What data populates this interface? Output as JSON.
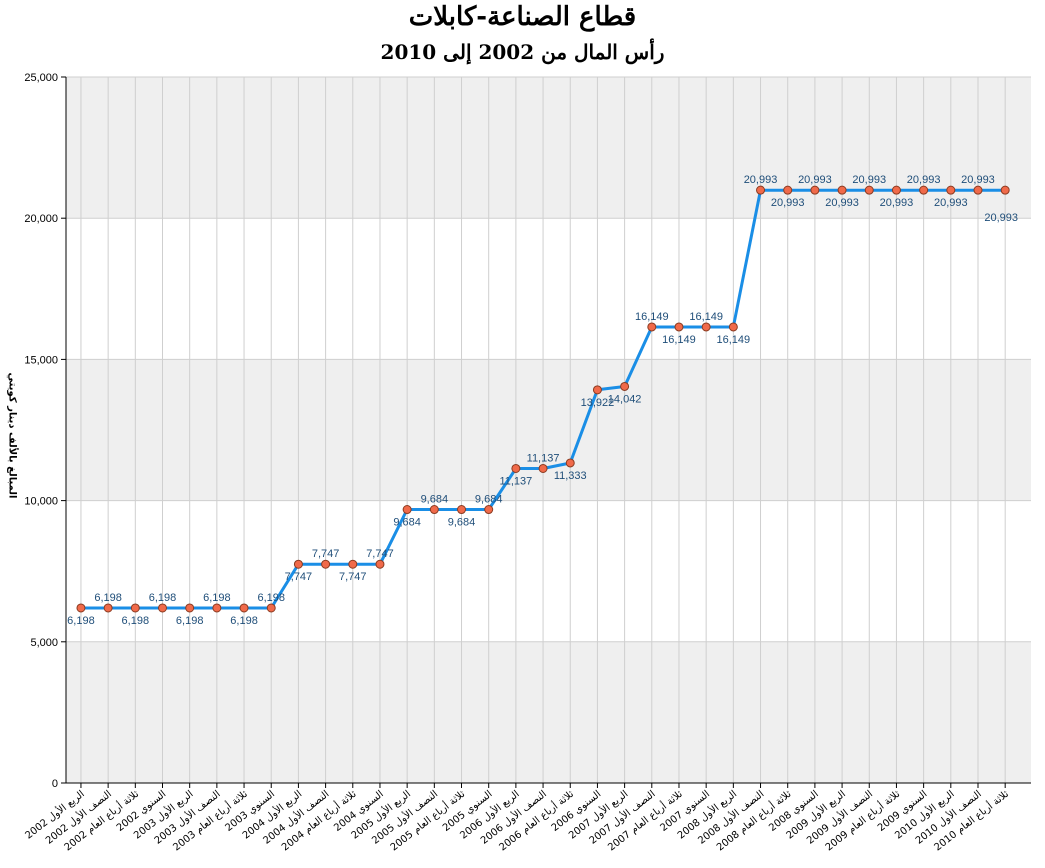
{
  "chart_data": {
    "type": "line",
    "title": "قطاع الصناعة-كابلات",
    "subtitle": "رأس المال من 2002 إلى 2010",
    "xlabel": "",
    "ylabel": "المبالغ بالألف دينار كويتي",
    "ylim": [
      0,
      25000
    ],
    "yticks": [
      "0",
      "5,000",
      "10,000",
      "15,000",
      "20,000",
      "25,000"
    ],
    "grid": true,
    "legend": "none",
    "line_color": "#1a8ee6",
    "marker_color": "#f06a4a",
    "band_color": "#efefef",
    "categories": [
      "الربع الأول 2002",
      "النصف الأول 2002",
      "ثلاثة أرباع العام 2002",
      "السنوي 2002",
      "الربع الأول 2003",
      "النصف الأول 2003",
      "ثلاثة أرباع العام 2003",
      "السنوي 2003",
      "الربع الأول 2004",
      "النصف الأول 2004",
      "ثلاثة أرباع العام 2004",
      "السنوي 2004",
      "الربع الأول 2005",
      "النصف الأول 2005",
      "ثلاثة أرباع العام 2005",
      "السنوي 2005",
      "الربع الأول 2006",
      "النصف الأول 2006",
      "ثلاثة أرباع العام 2006",
      "السنوي 2006",
      "الربع الأول 2007",
      "النصف الأول 2007",
      "ثلاثة أرباع العام 2007",
      "السنوي 2007",
      "الربع الأول 2008",
      "النصف الأول 2008",
      "ثلاثة أرباع العام 2008",
      "السنوي 2008",
      "الربع الأول 2009",
      "النصف الأول 2009",
      "ثلاثة أرباع العام 2009",
      "السنوي 2009",
      "الربع الأول 2010",
      "النصف الأول 2010",
      "ثلاثة أرباع العام 2010"
    ],
    "series": [
      {
        "values": [
          6198,
          6198,
          6198,
          6198,
          6198,
          6198,
          6198,
          6198,
          7747,
          7747,
          7747,
          7747,
          9684,
          9684,
          9684,
          9684,
          11137,
          11137,
          11333,
          13922,
          14042,
          16149,
          16149,
          16149,
          16149,
          20993,
          20993,
          20993,
          20993,
          20993,
          20993,
          20993,
          20993,
          20993,
          20993
        ],
        "labels": [
          "6,198",
          "6,198",
          "6,198",
          "6,198",
          "6,198",
          "6,198",
          "6,198",
          "6,198",
          "7,747",
          "7,747",
          "7,747",
          "7,747",
          "9,684",
          "9,684",
          "9,684",
          "9,684",
          "11,137",
          "11,137",
          "11,333",
          "13,922",
          "14,042",
          "16,149",
          "16,149",
          "16,149",
          "16,149",
          "20,993",
          "20,993",
          "20,993",
          "20,993",
          "20,993",
          "20,993",
          "20,993",
          "20,993",
          "20,993",
          "20,993"
        ]
      }
    ]
  }
}
